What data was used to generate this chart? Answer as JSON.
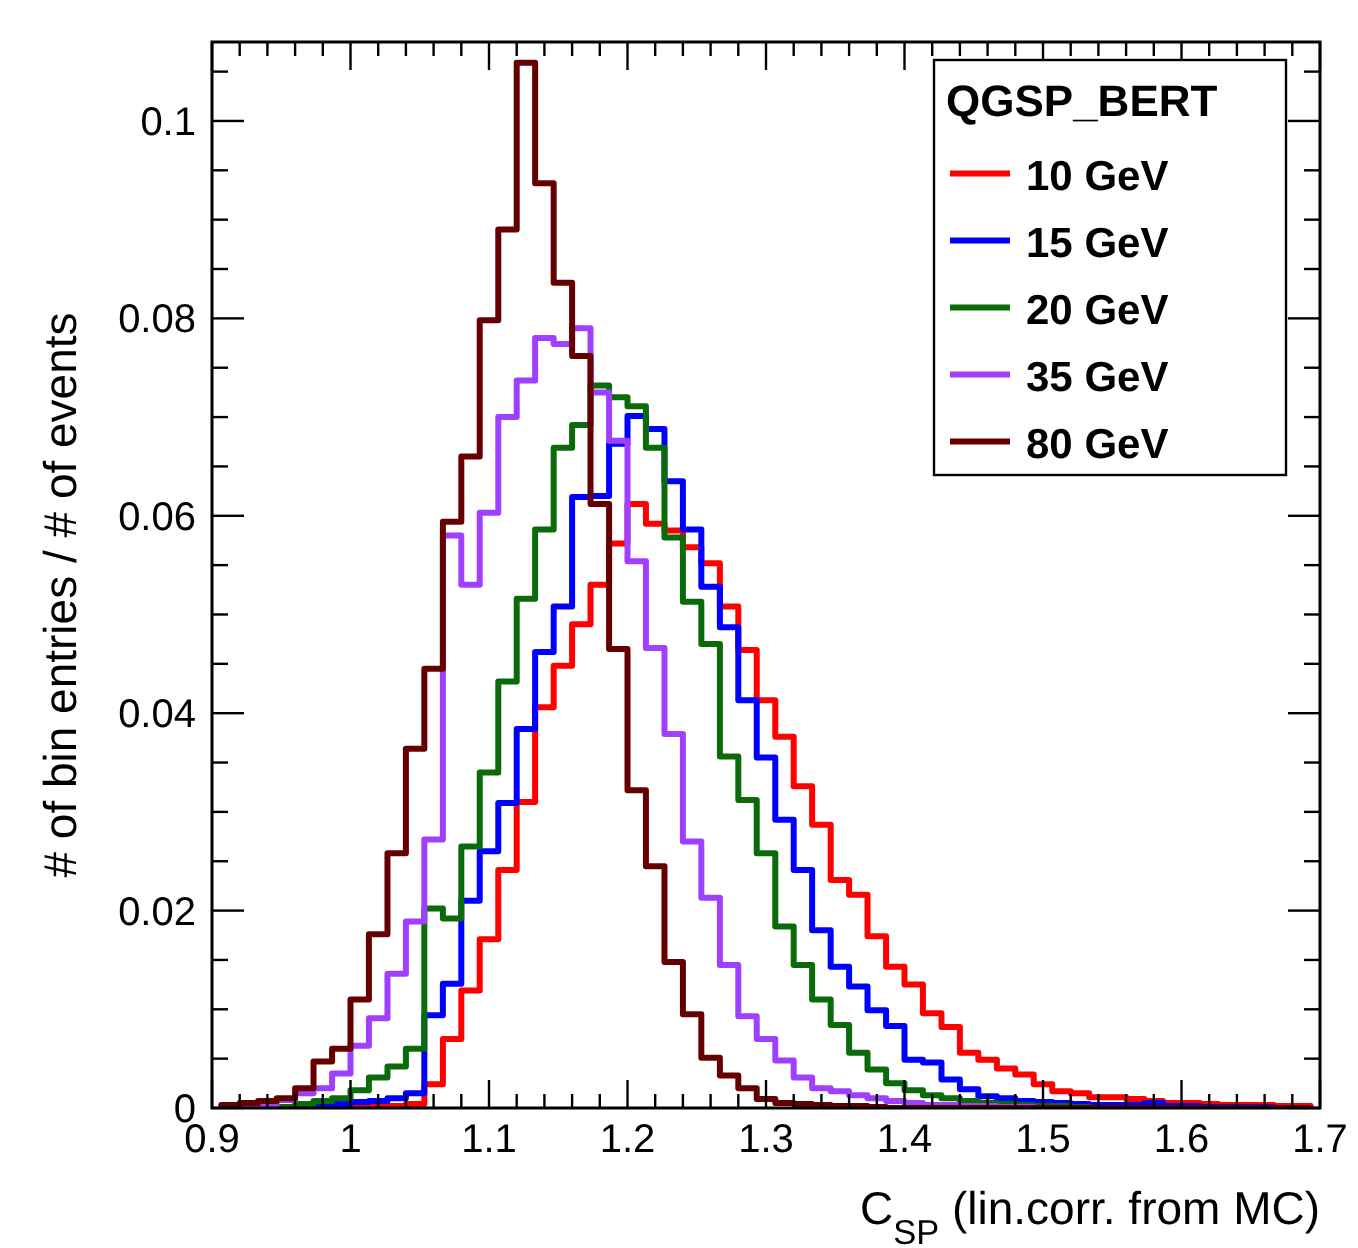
{
  "chart_data": {
    "type": "histogram",
    "xlabel": "C$_{SP}$ (lin.corr. from MC)",
    "ylabel": "# of bin entries / # of events",
    "legend_title": "QGSP_BERT",
    "legend": "top right",
    "grid": false,
    "xlim": [
      0.9,
      1.7
    ],
    "ylim": [
      0,
      0.108
    ],
    "xticks": [
      0.9,
      {
        "value": 0.92,
        "label": null
      },
      {
        "value": 0.94,
        "label": null
      },
      {
        "value": 0.96,
        "label": null
      },
      {
        "value": 0.98,
        "label": null
      },
      1,
      {
        "value": 1.02,
        "label": null
      },
      {
        "value": 1.04,
        "label": null
      },
      {
        "value": 1.06,
        "label": null
      },
      {
        "value": 1.08,
        "label": null
      },
      1.1,
      {
        "value": 1.12,
        "label": null
      },
      {
        "value": 1.14,
        "label": null
      },
      {
        "value": 1.16,
        "label": null
      },
      {
        "value": 1.18,
        "label": null
      },
      1.2,
      {
        "value": 1.22,
        "label": null
      },
      {
        "value": 1.24,
        "label": null
      },
      {
        "value": 1.26,
        "label": null
      },
      {
        "value": 1.28,
        "label": null
      },
      1.3,
      {
        "value": 1.32,
        "label": null
      },
      {
        "value": 1.34,
        "label": null
      },
      {
        "value": 1.36,
        "label": null
      },
      {
        "value": 1.38,
        "label": null
      },
      1.4,
      {
        "value": 1.42,
        "label": null
      },
      {
        "value": 1.44,
        "label": null
      },
      {
        "value": 1.46,
        "label": null
      },
      {
        "value": 1.48,
        "label": null
      },
      1.5,
      {
        "value": 1.52,
        "label": null
      },
      {
        "value": 1.54,
        "label": null
      },
      {
        "value": 1.56,
        "label": null
      },
      {
        "value": 1.58,
        "label": null
      },
      1.6,
      {
        "value": 1.62,
        "label": null
      },
      {
        "value": 1.64,
        "label": null
      },
      {
        "value": 1.66,
        "label": null
      },
      {
        "value": 1.68,
        "label": null
      },
      1.7
    ],
    "yticks": [
      0,
      {
        "value": 0.005,
        "label": null
      },
      {
        "value": 0.01,
        "label": null
      },
      {
        "value": 0.015,
        "label": null
      },
      0.02,
      {
        "value": 0.025,
        "label": null
      },
      {
        "value": 0.03,
        "label": null
      },
      {
        "value": 0.035,
        "label": null
      },
      0.04,
      {
        "value": 0.045,
        "label": null
      },
      {
        "value": 0.05,
        "label": null
      },
      {
        "value": 0.055,
        "label": null
      },
      0.06,
      {
        "value": 0.065,
        "label": null
      },
      {
        "value": 0.07,
        "label": null
      },
      {
        "value": 0.075,
        "label": null
      },
      0.08,
      {
        "value": 0.085,
        "label": null
      },
      {
        "value": 0.09,
        "label": null
      },
      {
        "value": 0.095,
        "label": null
      },
      0.1,
      {
        "value": 0.105,
        "label": null
      }
    ],
    "bins": [
      0.9067,
      0.92,
      0.9333,
      0.9467,
      0.96,
      0.9733,
      0.9867,
      1,
      1.0133,
      1.0267,
      1.04,
      1.0533,
      1.0667,
      1.08,
      1.0933,
      1.1067,
      1.12,
      1.1333,
      1.1467,
      1.16,
      1.1733,
      1.1867,
      1.2,
      1.2133,
      1.2267,
      1.24,
      1.2533,
      1.2667,
      1.28,
      1.2933,
      1.3067,
      1.32,
      1.3333,
      1.3467,
      1.36,
      1.3733,
      1.3867,
      1.4,
      1.4133,
      1.4267,
      1.44,
      1.4533,
      1.4667,
      1.48,
      1.4933,
      1.5067,
      1.52,
      1.5333,
      1.5467,
      1.56,
      1.5733,
      1.5867,
      1.6,
      1.6133,
      1.6267,
      1.64,
      1.6533,
      1.6667,
      1.68,
      1.6933
    ],
    "series": [
      {
        "name": "10 GeV",
        "color": "#ff0000",
        "values": [
          0,
          0,
          0,
          0,
          0,
          0,
          0,
          0.0001,
          0.0001,
          0.0002,
          0.0004,
          0.0024,
          0.007,
          0.0119,
          0.0171,
          0.0241,
          0.031,
          0.0406,
          0.0448,
          0.049,
          0.053,
          0.0572,
          0.0612,
          0.0592,
          0.0585,
          0.0568,
          0.0552,
          0.0508,
          0.0464,
          0.0413,
          0.0376,
          0.0326,
          0.0287,
          0.0231,
          0.0216,
          0.0174,
          0.0143,
          0.0125,
          0.0096,
          0.0082,
          0.0056,
          0.0049,
          0.004,
          0.0034,
          0.0024,
          0.0017,
          0.0015,
          0.0011,
          0.0011,
          0.0009,
          0.0007,
          0.0005,
          0.0005,
          0.0004,
          0.0003,
          0.0003,
          0.0003,
          0.0002,
          0.0002
        ]
      },
      {
        "name": "15 GeV",
        "color": "#0000ff",
        "values": [
          0,
          0,
          0,
          0,
          0.0001,
          0.0002,
          0.0004,
          0.0006,
          0.0007,
          0.001,
          0.0015,
          0.0094,
          0.0126,
          0.021,
          0.026,
          0.0309,
          0.0384,
          0.0462,
          0.0508,
          0.0619,
          0.062,
          0.0673,
          0.0701,
          0.0688,
          0.0635,
          0.0586,
          0.0528,
          0.0487,
          0.0413,
          0.0355,
          0.0292,
          0.0241,
          0.018,
          0.0143,
          0.0123,
          0.0099,
          0.0083,
          0.0049,
          0.0046,
          0.0029,
          0.0019,
          0.0012,
          0.001,
          0.0007,
          0.0006,
          0.0005,
          0.0004,
          0.0003,
          0.0003,
          0.0003,
          0.0005,
          0.0002,
          0.0002,
          0.0001,
          0.0001,
          0.0001,
          0.0001,
          0,
          0
        ]
      },
      {
        "name": "20 GeV",
        "color": "#0b6b0b",
        "values": [
          0,
          0,
          0,
          0.0001,
          0.0004,
          0.0007,
          0.001,
          0.0018,
          0.0031,
          0.0042,
          0.006,
          0.0202,
          0.0192,
          0.0265,
          0.034,
          0.0432,
          0.0516,
          0.0586,
          0.0669,
          0.0692,
          0.0732,
          0.072,
          0.0711,
          0.0669,
          0.0578,
          0.0513,
          0.047,
          0.0356,
          0.0312,
          0.0258,
          0.0184,
          0.0145,
          0.011,
          0.0084,
          0.0056,
          0.0039,
          0.0025,
          0.0018,
          0.0013,
          0.001,
          0.0007,
          0.0005,
          0.0004,
          0.0003,
          0.0002,
          0.0002,
          0.0001,
          0,
          0,
          0,
          0,
          0,
          0,
          0,
          0,
          0,
          0,
          0,
          0
        ]
      },
      {
        "name": "35 GeV",
        "color": "#a040ff",
        "values": [
          0,
          0.0002,
          0.0004,
          0.0008,
          0.0015,
          0.002,
          0.0035,
          0.0063,
          0.0091,
          0.0136,
          0.0189,
          0.0272,
          0.058,
          0.053,
          0.0603,
          0.07,
          0.0737,
          0.078,
          0.0774,
          0.079,
          0.0725,
          0.0676,
          0.0554,
          0.0466,
          0.0379,
          0.027,
          0.0213,
          0.0145,
          0.0093,
          0.007,
          0.0048,
          0.0031,
          0.002,
          0.0017,
          0.0013,
          0.001,
          0.0007,
          0.0005,
          0.0003,
          0.0003,
          0.0002,
          0.0002,
          0.0001,
          0.0001,
          0,
          0,
          0,
          0,
          0,
          0,
          0,
          0,
          0,
          0,
          0,
          0,
          0,
          0,
          0
        ]
      },
      {
        "name": "80 GeV",
        "color": "#660000",
        "values": [
          0.0003,
          0.0005,
          0.0007,
          0.001,
          0.002,
          0.0047,
          0.006,
          0.011,
          0.0176,
          0.0258,
          0.0364,
          0.0445,
          0.0594,
          0.066,
          0.0798,
          0.089,
          0.1059,
          0.0937,
          0.0836,
          0.0762,
          0.0612,
          0.0465,
          0.0322,
          0.0245,
          0.0148,
          0.0095,
          0.0051,
          0.0033,
          0.002,
          0.0009,
          0.0005,
          0.0004,
          0.0003,
          0.0002,
          0.0002,
          0.0001,
          0,
          0,
          0,
          0,
          0,
          0,
          0,
          0,
          0,
          0,
          0,
          0,
          0,
          0,
          0,
          0,
          0,
          0,
          0,
          0,
          0,
          0,
          0
        ]
      }
    ]
  }
}
